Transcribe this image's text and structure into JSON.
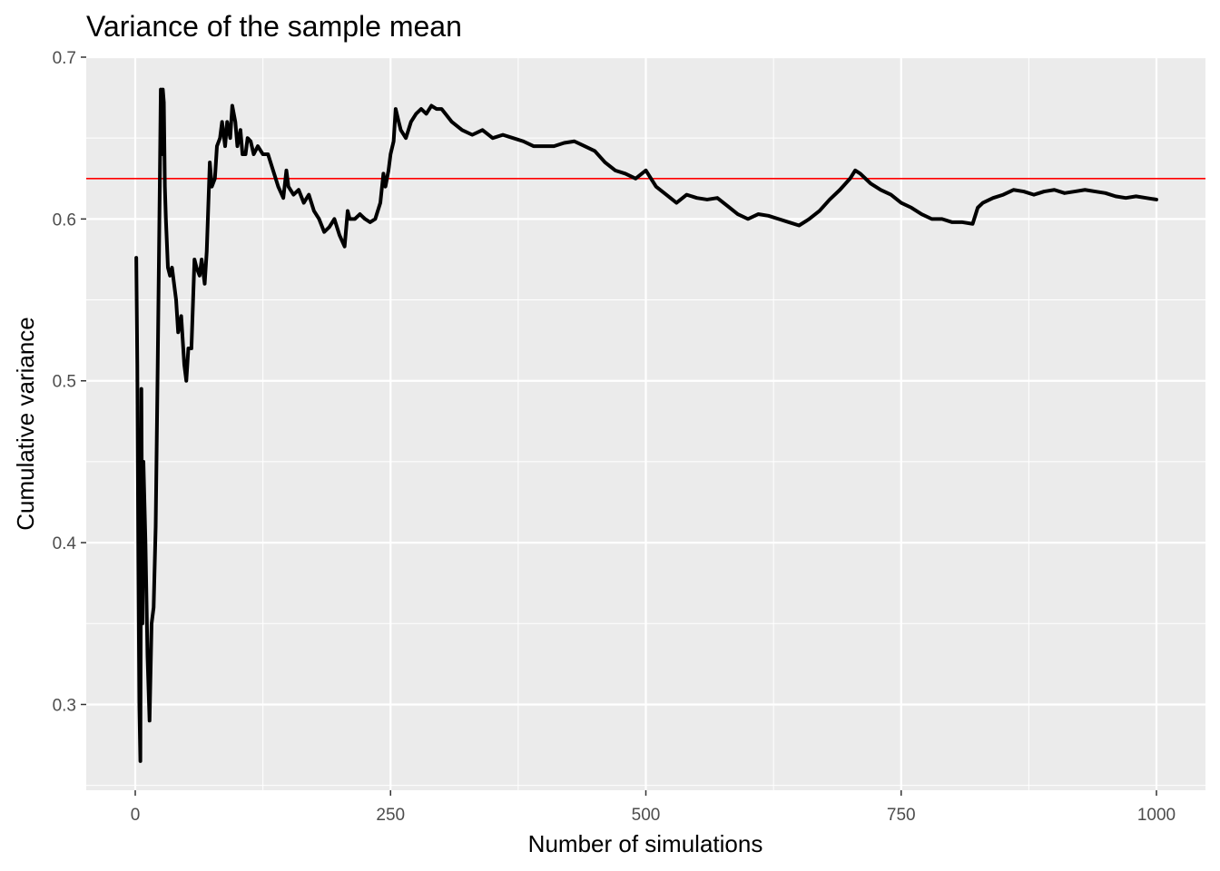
{
  "chart_data": {
    "type": "line",
    "title": "Variance of the sample mean",
    "xlabel": "Number of simulations",
    "ylabel": "Cumulative variance",
    "xlim": [
      -48,
      1048
    ],
    "ylim": [
      0.247,
      0.7
    ],
    "x_ticks": [
      0,
      250,
      500,
      750,
      1000
    ],
    "x_tick_labels": [
      "0",
      "250",
      "500",
      "750",
      "1000"
    ],
    "y_ticks": [
      0.3,
      0.4,
      0.5,
      0.6,
      0.7
    ],
    "y_tick_labels": [
      "0.3",
      "0.4",
      "0.5",
      "0.6",
      "0.7"
    ],
    "grid": true,
    "panel_background": "#ebebeb",
    "grid_color": "#ffffff",
    "reference_line": {
      "y": 0.625,
      "color": "#ff0000"
    },
    "series": [
      {
        "color": "#000000",
        "x": [
          1,
          2,
          3,
          4,
          5,
          6,
          7,
          8,
          10,
          12,
          14,
          16,
          18,
          20,
          22,
          24,
          25,
          26,
          27,
          28,
          29,
          30,
          32,
          34,
          36,
          38,
          40,
          42,
          45,
          48,
          50,
          52,
          55,
          58,
          60,
          63,
          65,
          68,
          70,
          73,
          75,
          78,
          80,
          83,
          85,
          88,
          90,
          93,
          95,
          98,
          100,
          103,
          105,
          108,
          110,
          113,
          116,
          120,
          125,
          130,
          135,
          140,
          145,
          148,
          150,
          155,
          160,
          165,
          170,
          175,
          180,
          185,
          190,
          195,
          200,
          205,
          208,
          210,
          215,
          220,
          225,
          230,
          235,
          240,
          243,
          245,
          248,
          250,
          253,
          255,
          258,
          260,
          265,
          270,
          275,
          280,
          285,
          290,
          295,
          300,
          310,
          320,
          330,
          340,
          350,
          360,
          370,
          380,
          390,
          400,
          410,
          420,
          430,
          440,
          450,
          460,
          470,
          480,
          490,
          500,
          510,
          520,
          530,
          540,
          550,
          560,
          570,
          580,
          590,
          600,
          610,
          620,
          630,
          640,
          650,
          660,
          670,
          680,
          690,
          700,
          705,
          710,
          720,
          730,
          740,
          750,
          760,
          770,
          780,
          790,
          800,
          810,
          820,
          825,
          830,
          840,
          850,
          860,
          870,
          880,
          890,
          900,
          910,
          920,
          930,
          940,
          950,
          960,
          970,
          980,
          990,
          1000
        ],
        "y": [
          0.576,
          0.51,
          0.39,
          0.3,
          0.265,
          0.495,
          0.35,
          0.45,
          0.4,
          0.33,
          0.29,
          0.35,
          0.36,
          0.41,
          0.51,
          0.62,
          0.68,
          0.64,
          0.68,
          0.672,
          0.62,
          0.6,
          0.57,
          0.565,
          0.57,
          0.56,
          0.55,
          0.53,
          0.54,
          0.51,
          0.5,
          0.52,
          0.52,
          0.575,
          0.57,
          0.565,
          0.575,
          0.56,
          0.58,
          0.635,
          0.62,
          0.625,
          0.645,
          0.65,
          0.66,
          0.645,
          0.66,
          0.65,
          0.67,
          0.66,
          0.645,
          0.655,
          0.64,
          0.64,
          0.65,
          0.648,
          0.64,
          0.645,
          0.64,
          0.64,
          0.63,
          0.62,
          0.613,
          0.63,
          0.62,
          0.615,
          0.618,
          0.61,
          0.615,
          0.605,
          0.6,
          0.592,
          0.595,
          0.6,
          0.59,
          0.583,
          0.605,
          0.6,
          0.6,
          0.603,
          0.6,
          0.598,
          0.6,
          0.61,
          0.628,
          0.62,
          0.63,
          0.64,
          0.648,
          0.668,
          0.66,
          0.655,
          0.65,
          0.66,
          0.665,
          0.668,
          0.665,
          0.67,
          0.668,
          0.668,
          0.66,
          0.655,
          0.652,
          0.655,
          0.65,
          0.652,
          0.65,
          0.648,
          0.645,
          0.645,
          0.645,
          0.647,
          0.648,
          0.645,
          0.642,
          0.635,
          0.63,
          0.628,
          0.625,
          0.63,
          0.62,
          0.615,
          0.61,
          0.615,
          0.613,
          0.612,
          0.613,
          0.608,
          0.603,
          0.6,
          0.603,
          0.602,
          0.6,
          0.598,
          0.596,
          0.6,
          0.605,
          0.612,
          0.618,
          0.625,
          0.63,
          0.628,
          0.622,
          0.618,
          0.615,
          0.61,
          0.607,
          0.603,
          0.6,
          0.6,
          0.598,
          0.598,
          0.597,
          0.607,
          0.61,
          0.613,
          0.615,
          0.618,
          0.617,
          0.615,
          0.617,
          0.618,
          0.616,
          0.617,
          0.618,
          0.617,
          0.616,
          0.614,
          0.613,
          0.614,
          0.613,
          0.612
        ]
      }
    ]
  }
}
